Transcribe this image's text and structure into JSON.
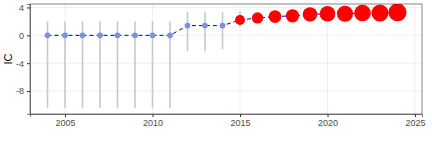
{
  "chart_data": {
    "type": "scatter",
    "y_label": "IC",
    "x": [
      2004,
      2005,
      2006,
      2007,
      2008,
      2009,
      2010,
      2011,
      2012,
      2013,
      2014,
      2015,
      2016,
      2017,
      2018,
      2019,
      2020,
      2021,
      2022,
      2023,
      2024
    ],
    "values": [
      0,
      0,
      0,
      0,
      0,
      0,
      0,
      0,
      1.4,
      1.4,
      1.4,
      2.2,
      2.5,
      2.7,
      2.8,
      3.0,
      3.1,
      3.1,
      3.2,
      3.2,
      3.3
    ],
    "lower": [
      -10.4,
      -10.4,
      -10.4,
      -10.4,
      -10.4,
      -10.4,
      -10.4,
      -10.4,
      -2.3,
      -2.3,
      -2.0,
      1.2,
      2.3,
      2.5,
      2.6,
      2.8,
      2.9,
      2.9,
      3.0,
      3.0,
      3.1
    ],
    "upper": [
      2.0,
      2.0,
      2.0,
      2.0,
      2.0,
      2.0,
      2.0,
      2.0,
      3.4,
      3.4,
      3.3,
      3.4,
      2.7,
      2.9,
      3.0,
      3.2,
      3.3,
      3.3,
      3.4,
      3.4,
      3.5
    ],
    "size": [
      1,
      1,
      1,
      1,
      1,
      1,
      1,
      1,
      1,
      1,
      1,
      3,
      4,
      5,
      5.5,
      6.5,
      7.5,
      8,
      8.5,
      9,
      10
    ],
    "colors": [
      "#7f8fe0",
      "#7f8fe0",
      "#7f8fe0",
      "#7f8fe0",
      "#7f8fe0",
      "#7f8fe0",
      "#7f8fe0",
      "#7f8fe0",
      "#7f8fe0",
      "#7f8fe0",
      "#7f8fe0",
      "#ff0000",
      "#ff0000",
      "#ff0000",
      "#ff0000",
      "#ff0000",
      "#ff0000",
      "#ff0000",
      "#ff0000",
      "#ff0000",
      "#ff0000"
    ],
    "color": "#0000cd",
    "line_style": "dashed",
    "marker": "circle",
    "xlim": [
      2003,
      2025.4
    ],
    "xticks": [
      2005,
      2010,
      2015,
      2020,
      2025
    ],
    "ylim": [
      -11.3,
      4.5
    ],
    "yticks": [
      -8,
      -4,
      0,
      4
    ],
    "grid": true
  }
}
